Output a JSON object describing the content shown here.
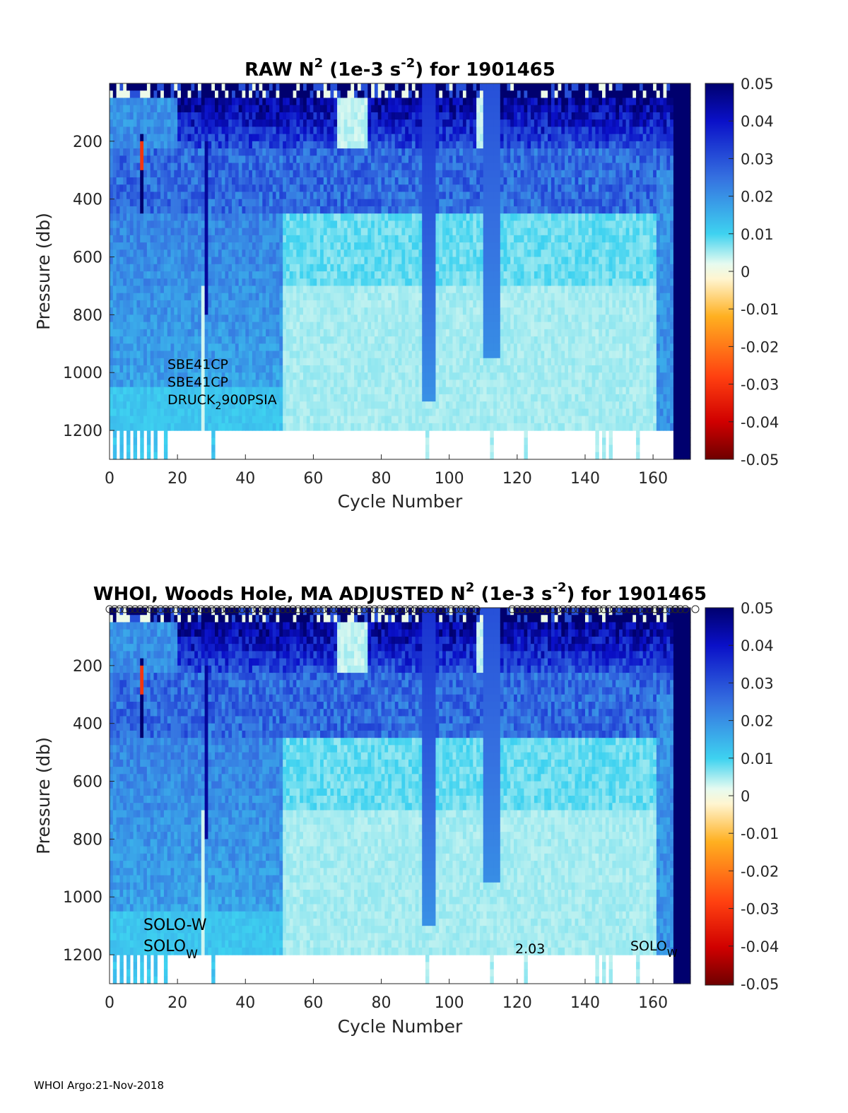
{
  "footer": "WHOI Argo:21-Nov-2018",
  "chart_data": [
    {
      "type": "heatmap",
      "title_pre": "RAW N",
      "title_sup1": "2",
      "title_mid": " (1e-3 s",
      "title_sup2": "-2",
      "title_post": ") for 1901465",
      "xlabel": "Cycle Number",
      "ylabel": "Pressure (db)",
      "xlim": [
        0,
        171
      ],
      "ylim": [
        1300,
        0
      ],
      "xticks": [
        "0",
        "20",
        "40",
        "60",
        "80",
        "100",
        "120",
        "140",
        "160"
      ],
      "yticks": [
        "200",
        "400",
        "600",
        "800",
        "1000",
        "1200"
      ],
      "colorbar": {
        "range": [
          -0.05,
          0.05
        ],
        "ticks": [
          "0.05",
          "0.04",
          "0.03",
          "0.02",
          "0.01",
          "0",
          "-0.01",
          "-0.02",
          "-0.03",
          "-0.04",
          "-0.05"
        ]
      },
      "annotations": {
        "line1": "SBE41CP",
        "line2": "SBE41CP",
        "line3_main": "DRUCK",
        "line3_sub": "2",
        "line3_rest": "900PSIA"
      }
    },
    {
      "type": "heatmap",
      "title_pre": "WHOI, Woods Hole, MA  ADJUSTED N",
      "title_sup1": "2",
      "title_mid": " (1e-3 s",
      "title_sup2": "-2",
      "title_post": ") for 1901465",
      "xlabel": "Cycle Number",
      "ylabel": "Pressure (db)",
      "xlim": [
        0,
        171
      ],
      "ylim": [
        1300,
        0
      ],
      "xticks": [
        "0",
        "20",
        "40",
        "60",
        "80",
        "100",
        "120",
        "140",
        "160"
      ],
      "yticks": [
        "200",
        "400",
        "600",
        "800",
        "1000",
        "1200"
      ],
      "colorbar": {
        "range": [
          -0.05,
          0.05
        ],
        "ticks": [
          "0.05",
          "0.04",
          "0.03",
          "0.02",
          "0.01",
          "0",
          "-0.01",
          "-0.02",
          "-0.03",
          "-0.04",
          "-0.05"
        ]
      },
      "annotations": {
        "solo1": "SOLO-W",
        "solo2_main": "SOLO",
        "solo2_sub": "W",
        "version": "2.03",
        "solo3_main": "SOLO",
        "solo3_sub": "W"
      }
    }
  ]
}
